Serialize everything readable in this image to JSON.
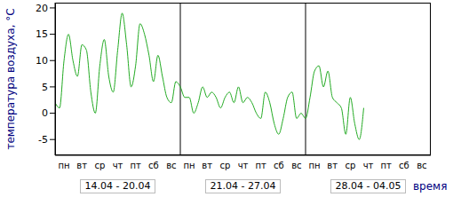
{
  "chart_data": {
    "type": "line",
    "y_label": "температура воздуха, °C",
    "x_label": "время",
    "xlim": [
      0,
      21
    ],
    "ylim": [
      -8,
      21
    ],
    "yticks": [
      -5,
      0,
      5,
      10,
      15,
      20
    ],
    "xticks": [
      {
        "value": 0.5,
        "label": "пн"
      },
      {
        "value": 1.5,
        "label": "вт"
      },
      {
        "value": 2.5,
        "label": "ср"
      },
      {
        "value": 3.5,
        "label": "чт"
      },
      {
        "value": 4.5,
        "label": "пт"
      },
      {
        "value": 5.5,
        "label": "сб"
      },
      {
        "value": 6.5,
        "label": "вс"
      },
      {
        "value": 7.5,
        "label": "пн"
      },
      {
        "value": 8.5,
        "label": "вт"
      },
      {
        "value": 9.5,
        "label": "ср"
      },
      {
        "value": 10.5,
        "label": "чт"
      },
      {
        "value": 11.5,
        "label": "пт"
      },
      {
        "value": 12.5,
        "label": "сб"
      },
      {
        "value": 13.5,
        "label": "вс"
      },
      {
        "value": 14.5,
        "label": "пн"
      },
      {
        "value": 15.5,
        "label": "вт"
      },
      {
        "value": 16.5,
        "label": "ср"
      },
      {
        "value": 17.5,
        "label": "чт"
      },
      {
        "value": 18.5,
        "label": "пт"
      },
      {
        "value": 19.5,
        "label": "сб"
      },
      {
        "value": 20.5,
        "label": "вс"
      }
    ],
    "week_ranges": [
      {
        "label": "14.04 - 20.04",
        "start": 0,
        "end": 7
      },
      {
        "label": "21.04 - 27.04",
        "start": 7,
        "end": 14
      },
      {
        "label": "28.04 - 04.05",
        "start": 14,
        "end": 21
      }
    ],
    "grid": false,
    "color": "#22aa22",
    "x": [
      0,
      0.25,
      0.5,
      0.75,
      1,
      1.25,
      1.5,
      1.75,
      2,
      2.25,
      2.5,
      2.75,
      3,
      3.25,
      3.5,
      3.75,
      4,
      4.25,
      4.5,
      4.75,
      5,
      5.25,
      5.5,
      5.75,
      6,
      6.25,
      6.5,
      6.75,
      7,
      7.25,
      7.5,
      7.75,
      8,
      8.25,
      8.5,
      8.75,
      9,
      9.25,
      9.5,
      9.75,
      10,
      10.25,
      10.5,
      10.75,
      11,
      11.25,
      11.5,
      11.75,
      12,
      12.25,
      12.5,
      12.75,
      13,
      13.25,
      13.5,
      13.75,
      14,
      14.25,
      14.5,
      14.75,
      15,
      15.25,
      15.5,
      15.75,
      16,
      16.25,
      16.5,
      16.75,
      17,
      17.25
    ],
    "values": [
      2,
      1,
      10,
      15,
      10,
      7,
      13,
      12,
      4,
      0,
      9,
      14,
      7,
      4,
      12,
      19,
      13,
      5,
      9,
      17,
      15,
      11,
      6,
      11,
      7,
      3,
      2,
      6,
      5,
      3,
      3,
      0,
      2,
      5,
      3,
      4,
      3,
      1,
      3,
      4,
      2,
      5,
      2,
      3,
      2,
      0,
      -1,
      4,
      2,
      -2,
      -4,
      -1,
      3,
      4,
      -1,
      0,
      -1,
      3,
      8,
      9,
      5,
      8,
      3,
      2,
      1,
      -4,
      3,
      -2,
      -5,
      1
    ]
  }
}
